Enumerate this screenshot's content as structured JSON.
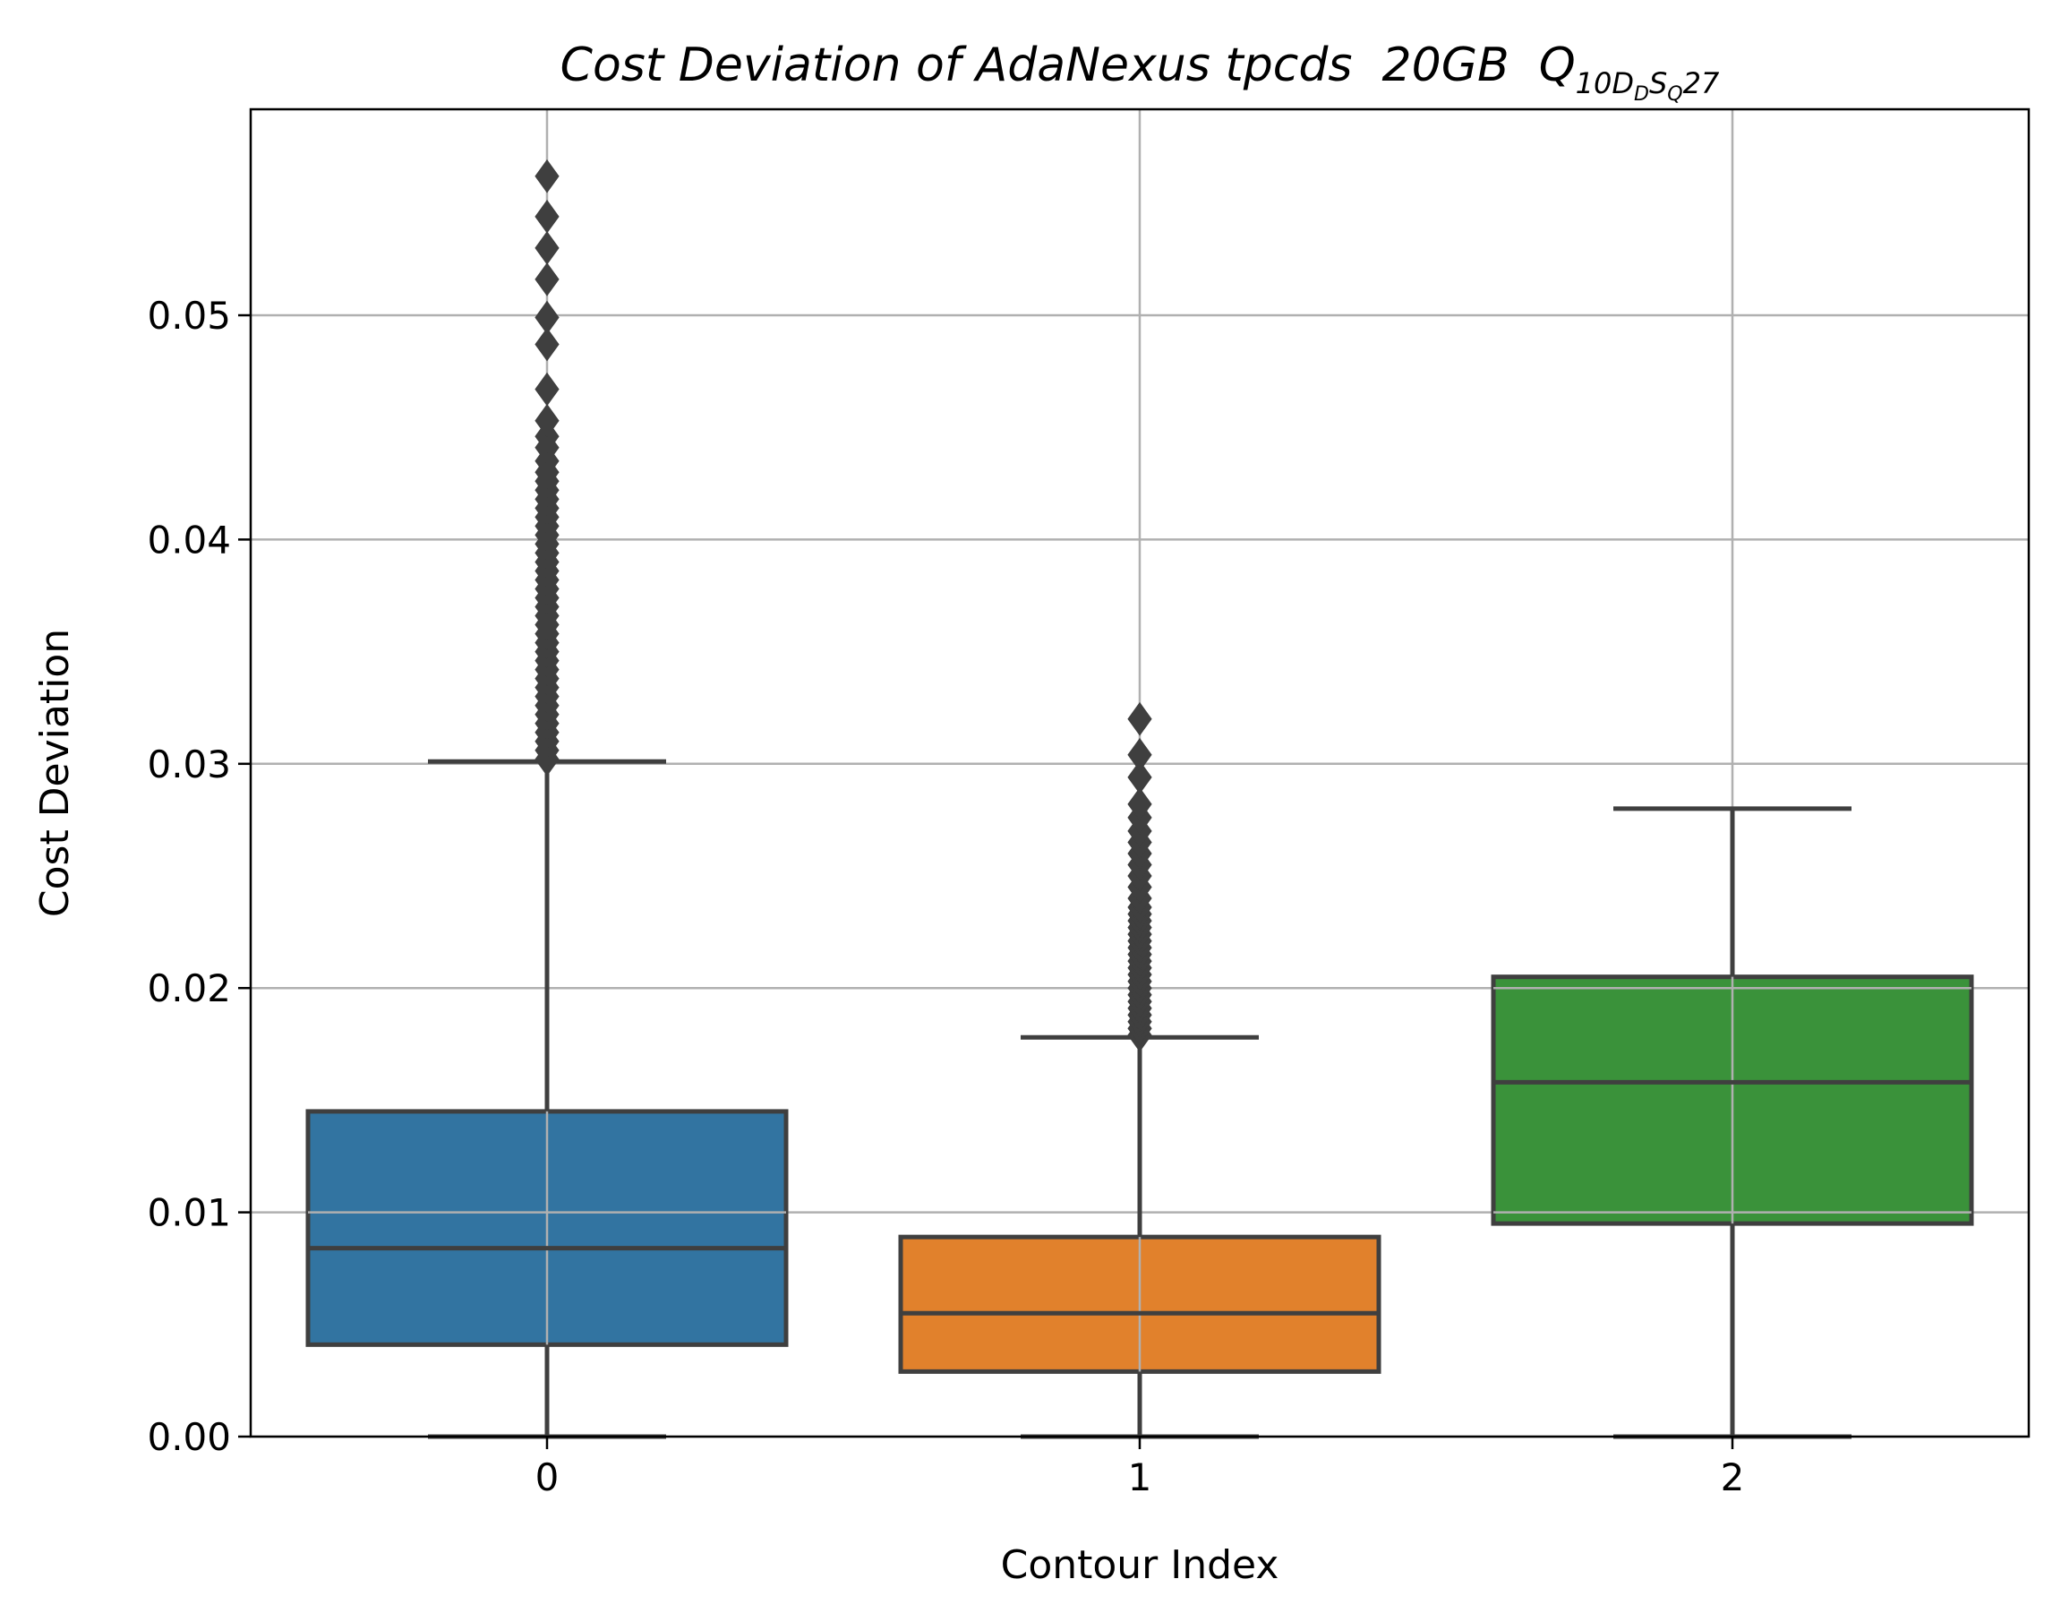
{
  "chart_data": {
    "type": "box",
    "title": {
      "main": "Cost Deviation of AdaNexus tpcds  20GB  ",
      "q": "Q",
      "sub_a": "10D",
      "sub_b": "D",
      "sub_c": "S",
      "sub_d": "Q",
      "tail": "27"
    },
    "xlabel": "Contour Index",
    "ylabel": "Cost Deviation",
    "ylim": [
      0,
      0.0592
    ],
    "yticks": [
      0,
      0.01,
      0.02,
      0.03,
      0.04,
      0.05
    ],
    "ytick_labels": [
      "0.00",
      "0.01",
      "0.02",
      "0.03",
      "0.04",
      "0.05"
    ],
    "grid": true,
    "categories": [
      "0",
      "1",
      "2"
    ],
    "boxes": [
      {
        "category": "0",
        "color": "#3274a1",
        "whisker_low": 0.0,
        "q1": 0.0041,
        "median": 0.0084,
        "q3": 0.0145,
        "whisker_high": 0.0301,
        "outliers": [
          0.0302,
          0.0306,
          0.031,
          0.0314,
          0.0318,
          0.0322,
          0.0326,
          0.033,
          0.0334,
          0.0338,
          0.0342,
          0.0346,
          0.035,
          0.0354,
          0.0358,
          0.0362,
          0.0366,
          0.037,
          0.0374,
          0.0378,
          0.0382,
          0.0386,
          0.039,
          0.0394,
          0.0398,
          0.0402,
          0.0406,
          0.041,
          0.0414,
          0.0418,
          0.0422,
          0.0426,
          0.043,
          0.0435,
          0.0441,
          0.0446,
          0.0453,
          0.0467,
          0.0487,
          0.0499,
          0.0516,
          0.053,
          0.0544,
          0.0562
        ]
      },
      {
        "category": "1",
        "color": "#e1812c",
        "whisker_low": 0.0,
        "q1": 0.0029,
        "median": 0.0055,
        "q3": 0.0089,
        "whisker_high": 0.0178,
        "outliers": [
          0.0179,
          0.0182,
          0.0185,
          0.0188,
          0.0191,
          0.0194,
          0.0197,
          0.02,
          0.0203,
          0.0206,
          0.0209,
          0.0212,
          0.0215,
          0.0218,
          0.0221,
          0.0224,
          0.0227,
          0.023,
          0.0233,
          0.0236,
          0.024,
          0.0245,
          0.025,
          0.0255,
          0.026,
          0.0265,
          0.027,
          0.0276,
          0.0282,
          0.0294,
          0.0304,
          0.032
        ]
      },
      {
        "category": "2",
        "color": "#3a923a",
        "whisker_low": 0.0,
        "q1": 0.0095,
        "median": 0.0158,
        "q3": 0.0205,
        "whisker_high": 0.028,
        "outliers": []
      }
    ]
  }
}
